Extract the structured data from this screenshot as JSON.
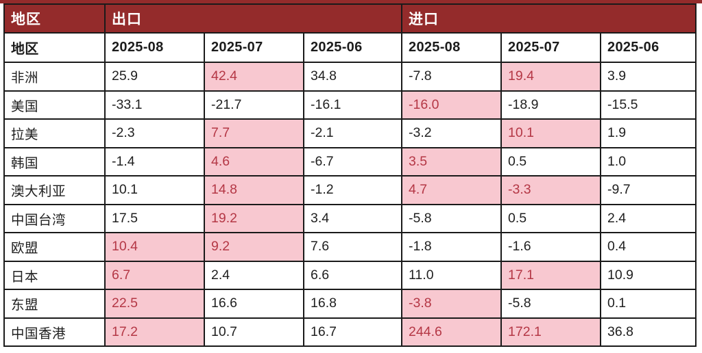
{
  "colors": {
    "page_bg": "#FFFFFF",
    "header_bg": "#942B2B",
    "header_text": "#FFFFFF",
    "border": "#1A1A1A",
    "body_text": "#1F1F1F",
    "highlight_bg": "#F8C8D0",
    "highlight_text": "#B43745"
  },
  "table": {
    "group_header": {
      "region": "地区",
      "export": "出口",
      "import": "进口"
    },
    "sub_header": {
      "region": "地区",
      "columns": [
        "2025-08",
        "2025-07",
        "2025-06",
        "2025-08",
        "2025-07",
        "2025-06"
      ]
    },
    "rows": [
      {
        "region": "非洲",
        "values": [
          "25.9",
          "42.4",
          "34.8",
          "-7.8",
          "19.4",
          "3.9"
        ],
        "highlight": [
          false,
          true,
          false,
          false,
          true,
          false
        ]
      },
      {
        "region": "美国",
        "values": [
          "-33.1",
          "-21.7",
          "-16.1",
          "-16.0",
          "-18.9",
          "-15.5"
        ],
        "highlight": [
          false,
          false,
          false,
          true,
          false,
          false
        ]
      },
      {
        "region": "拉美",
        "values": [
          "-2.3",
          "7.7",
          "-2.1",
          "-3.2",
          "10.1",
          "1.9"
        ],
        "highlight": [
          false,
          true,
          false,
          false,
          true,
          false
        ]
      },
      {
        "region": "韩国",
        "values": [
          "-1.4",
          "4.6",
          "-6.7",
          "3.5",
          "0.5",
          "1.0"
        ],
        "highlight": [
          false,
          true,
          false,
          true,
          false,
          false
        ]
      },
      {
        "region": "澳大利亚",
        "values": [
          "10.1",
          "14.8",
          "-1.2",
          "4.7",
          "-3.3",
          "-9.7"
        ],
        "highlight": [
          false,
          true,
          false,
          true,
          true,
          false
        ]
      },
      {
        "region": "中国台湾",
        "values": [
          "17.5",
          "19.2",
          "3.4",
          "-5.8",
          "0.5",
          "2.4"
        ],
        "highlight": [
          false,
          true,
          false,
          false,
          false,
          false
        ]
      },
      {
        "region": "欧盟",
        "values": [
          "10.4",
          "9.2",
          "7.6",
          "-1.8",
          "-1.6",
          "0.4"
        ],
        "highlight": [
          true,
          true,
          false,
          false,
          false,
          false
        ]
      },
      {
        "region": "日本",
        "values": [
          "6.7",
          "2.4",
          "6.6",
          "11.0",
          "17.1",
          "10.9"
        ],
        "highlight": [
          true,
          false,
          false,
          false,
          true,
          false
        ]
      },
      {
        "region": "东盟",
        "values": [
          "22.5",
          "16.6",
          "16.8",
          "-3.8",
          "-5.8",
          "0.1"
        ],
        "highlight": [
          true,
          false,
          false,
          true,
          false,
          false
        ]
      },
      {
        "region": "中国香港",
        "values": [
          "17.2",
          "10.7",
          "16.7",
          "244.6",
          "172.1",
          "36.8"
        ],
        "highlight": [
          true,
          false,
          false,
          true,
          true,
          false
        ]
      }
    ]
  },
  "chart_data": {
    "type": "table",
    "title": "",
    "group_columns": [
      {
        "label": "地区",
        "span": 1
      },
      {
        "label": "出口",
        "span": 3
      },
      {
        "label": "进口",
        "span": 3
      }
    ],
    "columns": [
      "地区",
      "出口 2025-08",
      "出口 2025-07",
      "出口 2025-06",
      "进口 2025-08",
      "进口 2025-07",
      "进口 2025-06"
    ],
    "rows": [
      [
        "非洲",
        25.9,
        42.4,
        34.8,
        -7.8,
        19.4,
        3.9
      ],
      [
        "美国",
        -33.1,
        -21.7,
        -16.1,
        -16.0,
        -18.9,
        -15.5
      ],
      [
        "拉美",
        -2.3,
        7.7,
        -2.1,
        -3.2,
        10.1,
        1.9
      ],
      [
        "韩国",
        -1.4,
        4.6,
        -6.7,
        3.5,
        0.5,
        1.0
      ],
      [
        "澳大利亚",
        10.1,
        14.8,
        -1.2,
        4.7,
        -3.3,
        -9.7
      ],
      [
        "中国台湾",
        17.5,
        19.2,
        3.4,
        -5.8,
        0.5,
        2.4
      ],
      [
        "欧盟",
        10.4,
        9.2,
        7.6,
        -1.8,
        -1.6,
        0.4
      ],
      [
        "日本",
        6.7,
        2.4,
        6.6,
        11.0,
        17.1,
        10.9
      ],
      [
        "东盟",
        22.5,
        16.6,
        16.8,
        -3.8,
        -5.8,
        0.1
      ],
      [
        "中国香港",
        17.2,
        10.7,
        16.7,
        244.6,
        172.1,
        36.8
      ]
    ],
    "layout_hints": {
      "highlight_style": "pink background with dark-red text on emphasized cells",
      "header_style": "dark brick-red band with white bold labels"
    }
  }
}
